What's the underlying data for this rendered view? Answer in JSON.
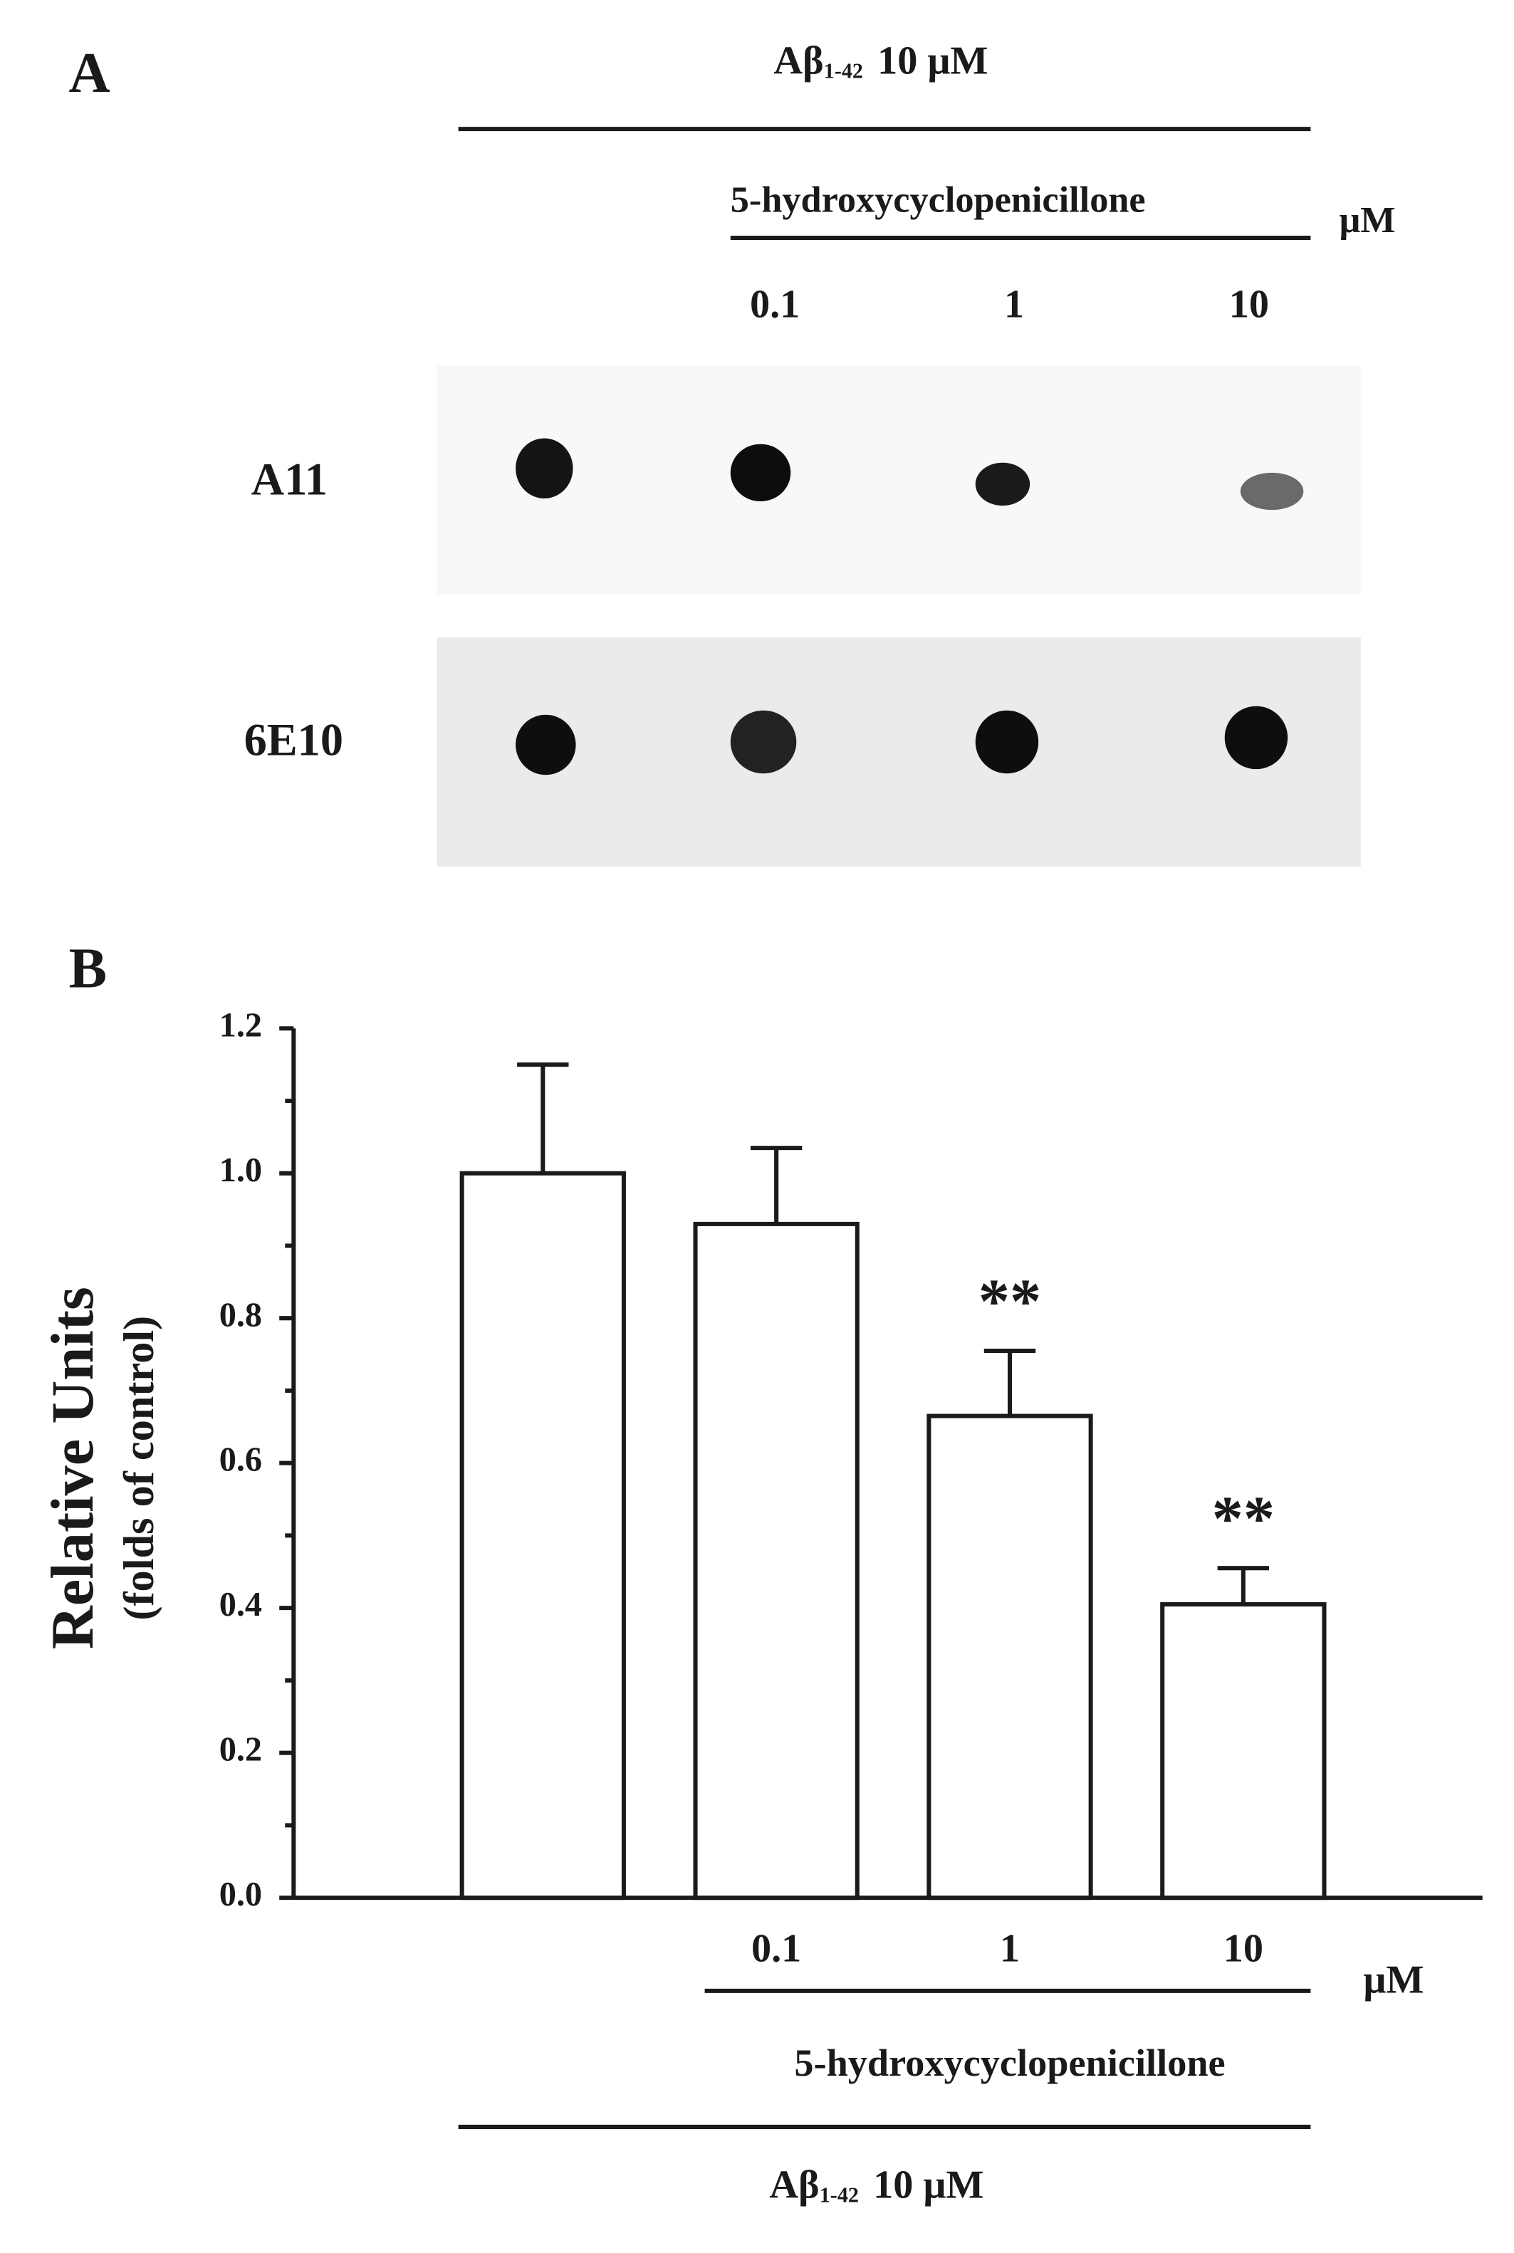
{
  "panel_a": {
    "letter": "A",
    "treatment": {
      "prefix": "Aβ",
      "subscript": "1-42",
      "suffix": "10 μM"
    },
    "compound": "5-hydroxycyclopenicillone",
    "unit": "μM",
    "doses": [
      "0.1",
      "1",
      "10"
    ],
    "rows": [
      "A11",
      "6E10"
    ]
  },
  "chart_data": {
    "type": "bar",
    "letter": "B",
    "y_label": "Relative Units",
    "y_sublabel": "(folds of control)",
    "categories": [
      null,
      "0.1",
      "1",
      "10"
    ],
    "values": [
      1.0,
      0.93,
      0.665,
      0.405
    ],
    "errors": [
      0.15,
      0.105,
      0.09,
      0.05
    ],
    "annotations": [
      null,
      null,
      "**",
      "**"
    ],
    "color": "#ffffff",
    "ylim": [
      0,
      1.2
    ],
    "yticks": [
      {
        "value": 0,
        "label": "0.0"
      },
      0.2,
      0.4,
      0.6,
      0.8,
      {
        "value": 1,
        "label": "1.0"
      },
      1.2
    ],
    "minor_yticks": [
      0.1,
      0.3,
      0.5,
      0.7,
      0.9,
      1.1
    ],
    "x_unit": "μM",
    "x_group": "5-hydroxycyclopenicillone",
    "x_treatment": {
      "prefix": "Aβ",
      "subscript": "1-42",
      "suffix": "10 μM"
    }
  }
}
